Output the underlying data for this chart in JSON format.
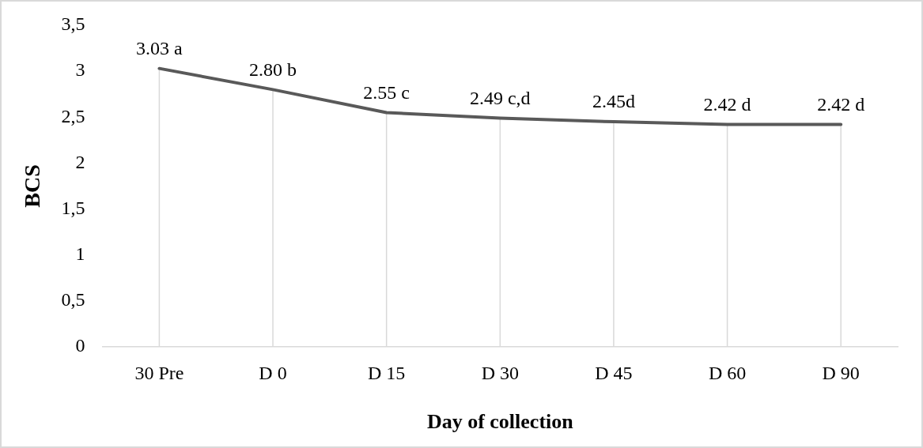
{
  "chart_data": {
    "type": "line",
    "xlabel": "Day of collection",
    "ylabel": "BCS",
    "categories": [
      "30 Pre",
      "D 0",
      "D 15",
      "D 30",
      "D 45",
      "D 60",
      "D 90"
    ],
    "series": [
      {
        "color": "#595959",
        "values": [
          3.03,
          2.8,
          2.55,
          2.49,
          2.45,
          2.42,
          2.42
        ],
        "value_labels": [
          "3.03 a",
          "2.80 b",
          "2.55 c",
          "2.49 c,d",
          "2.45d",
          "2.42 d",
          "2.42 d"
        ]
      }
    ],
    "ylim": [
      0,
      3.5
    ],
    "yticks": [
      0,
      {
        "value": 0.5,
        "label": "0,5"
      },
      1,
      {
        "value": 1.5,
        "label": "1,5"
      },
      2,
      {
        "value": 2.5,
        "label": "2,5"
      },
      3,
      {
        "value": 3.5,
        "label": "3,5"
      }
    ],
    "grid": "x",
    "legend": false,
    "marker": "none",
    "line_style": "solid"
  }
}
